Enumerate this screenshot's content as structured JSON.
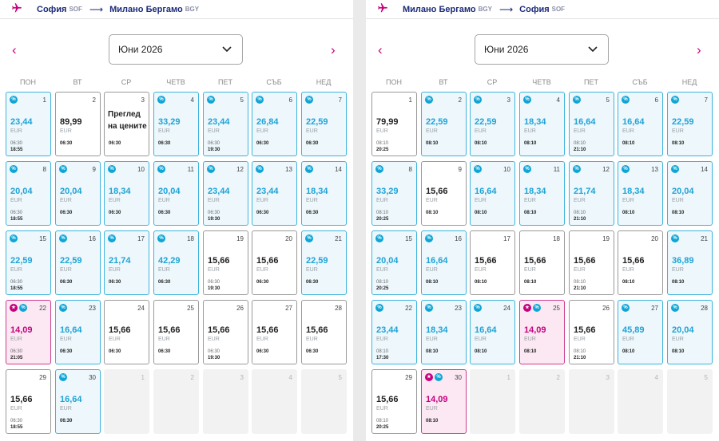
{
  "panels": [
    {
      "origin": "София",
      "origin_code": "SOF",
      "destination": "Милано Бергамо",
      "destination_code": "BGY",
      "month": "Юни 2026",
      "weekdays": [
        "ПОН",
        "ВТ",
        "СР",
        "ЧЕТВ",
        "ПЕТ",
        "СЪБ",
        "НЕД"
      ],
      "days": [
        {
          "day": "1",
          "price": "23,44",
          "currency": "EUR",
          "times": [
            "06:30",
            "18:55"
          ],
          "badges": [
            "pct"
          ],
          "style": "promo"
        },
        {
          "day": "2",
          "price": "89,99",
          "currency": "EUR",
          "times": [
            "06:30"
          ],
          "badges": [],
          "style": "plain"
        },
        {
          "day": "3",
          "note": "Преглед на цените",
          "times": [
            "06:30"
          ],
          "badges": [],
          "style": "plain"
        },
        {
          "day": "4",
          "price": "33,29",
          "currency": "EUR",
          "times": [
            "06:30"
          ],
          "badges": [
            "pct"
          ],
          "style": "promo"
        },
        {
          "day": "5",
          "price": "23,44",
          "currency": "EUR",
          "times": [
            "06:30",
            "19:30"
          ],
          "badges": [
            "pct"
          ],
          "style": "promo"
        },
        {
          "day": "6",
          "price": "26,84",
          "currency": "EUR",
          "times": [
            "06:30"
          ],
          "badges": [
            "pct"
          ],
          "style": "promo"
        },
        {
          "day": "7",
          "price": "22,59",
          "currency": "EUR",
          "times": [
            "06:30"
          ],
          "badges": [
            "pct"
          ],
          "style": "promo"
        },
        {
          "day": "8",
          "price": "20,04",
          "currency": "EUR",
          "times": [
            "06:30",
            "18:55"
          ],
          "badges": [
            "pct"
          ],
          "style": "promo"
        },
        {
          "day": "9",
          "price": "20,04",
          "currency": "EUR",
          "times": [
            "06:30"
          ],
          "badges": [
            "pct"
          ],
          "style": "promo"
        },
        {
          "day": "10",
          "price": "18,34",
          "currency": "EUR",
          "times": [
            "06:30"
          ],
          "badges": [
            "pct"
          ],
          "style": "promo"
        },
        {
          "day": "11",
          "price": "20,04",
          "currency": "EUR",
          "times": [
            "06:30"
          ],
          "badges": [
            "pct"
          ],
          "style": "promo"
        },
        {
          "day": "12",
          "price": "23,44",
          "currency": "EUR",
          "times": [
            "06:30",
            "19:30"
          ],
          "badges": [
            "pct"
          ],
          "style": "promo"
        },
        {
          "day": "13",
          "price": "23,44",
          "currency": "EUR",
          "times": [
            "06:30"
          ],
          "badges": [
            "pct"
          ],
          "style": "promo"
        },
        {
          "day": "14",
          "price": "18,34",
          "currency": "EUR",
          "times": [
            "06:30"
          ],
          "badges": [
            "pct"
          ],
          "style": "promo"
        },
        {
          "day": "15",
          "price": "22,59",
          "currency": "EUR",
          "times": [
            "06:30",
            "18:55"
          ],
          "badges": [
            "pct"
          ],
          "style": "promo"
        },
        {
          "day": "16",
          "price": "22,59",
          "currency": "EUR",
          "times": [
            "06:30"
          ],
          "badges": [
            "pct"
          ],
          "style": "promo"
        },
        {
          "day": "17",
          "price": "21,74",
          "currency": "EUR",
          "times": [
            "06:30"
          ],
          "badges": [
            "pct"
          ],
          "style": "promo"
        },
        {
          "day": "18",
          "price": "42,29",
          "currency": "EUR",
          "times": [
            "06:30"
          ],
          "badges": [
            "pct"
          ],
          "style": "promo"
        },
        {
          "day": "19",
          "price": "15,66",
          "currency": "EUR",
          "times": [
            "06:30",
            "19:30"
          ],
          "badges": [],
          "style": "plain"
        },
        {
          "day": "20",
          "price": "15,66",
          "currency": "EUR",
          "times": [
            "06:30"
          ],
          "badges": [],
          "style": "plain"
        },
        {
          "day": "21",
          "price": "22,59",
          "currency": "EUR",
          "times": [
            "06:30"
          ],
          "badges": [
            "pct"
          ],
          "style": "promo"
        },
        {
          "day": "22",
          "price": "14,09",
          "currency": "EUR",
          "times": [
            "06:30",
            "21:05"
          ],
          "badges": [
            "star",
            "pct"
          ],
          "style": "hot"
        },
        {
          "day": "23",
          "price": "16,64",
          "currency": "EUR",
          "times": [
            "06:30"
          ],
          "badges": [
            "pct"
          ],
          "style": "promo"
        },
        {
          "day": "24",
          "price": "15,66",
          "currency": "EUR",
          "times": [
            "06:30"
          ],
          "badges": [],
          "style": "plain"
        },
        {
          "day": "25",
          "price": "15,66",
          "currency": "EUR",
          "times": [
            "06:30"
          ],
          "badges": [],
          "style": "plain"
        },
        {
          "day": "26",
          "price": "15,66",
          "currency": "EUR",
          "times": [
            "06:30",
            "19:30"
          ],
          "badges": [],
          "style": "plain"
        },
        {
          "day": "27",
          "price": "15,66",
          "currency": "EUR",
          "times": [
            "06:30"
          ],
          "badges": [],
          "style": "plain"
        },
        {
          "day": "28",
          "price": "15,66",
          "currency": "EUR",
          "times": [
            "06:30"
          ],
          "badges": [],
          "style": "plain"
        },
        {
          "day": "29",
          "price": "15,66",
          "currency": "EUR",
          "times": [
            "06:30",
            "18:55"
          ],
          "badges": [],
          "style": "plain"
        },
        {
          "day": "30",
          "price": "16,64",
          "currency": "EUR",
          "times": [
            "06:30"
          ],
          "badges": [
            "pct"
          ],
          "style": "promo"
        },
        {
          "day": "1",
          "style": "empty"
        },
        {
          "day": "2",
          "style": "empty"
        },
        {
          "day": "3",
          "style": "empty"
        },
        {
          "day": "4",
          "style": "empty"
        },
        {
          "day": "5",
          "style": "empty"
        }
      ]
    },
    {
      "origin": "Милано Бергамо",
      "origin_code": "BGY",
      "destination": "София",
      "destination_code": "SOF",
      "month": "Юни 2026",
      "weekdays": [
        "ПОН",
        "ВТ",
        "СР",
        "ЧЕТВ",
        "ПЕТ",
        "СЪБ",
        "НЕД"
      ],
      "days": [
        {
          "day": "1",
          "price": "79,99",
          "currency": "EUR",
          "times": [
            "08:10",
            "20:25"
          ],
          "badges": [],
          "style": "plain"
        },
        {
          "day": "2",
          "price": "22,59",
          "currency": "EUR",
          "times": [
            "08:10"
          ],
          "badges": [
            "pct"
          ],
          "style": "promo"
        },
        {
          "day": "3",
          "price": "22,59",
          "currency": "EUR",
          "times": [
            "08:10"
          ],
          "badges": [
            "pct"
          ],
          "style": "promo"
        },
        {
          "day": "4",
          "price": "18,34",
          "currency": "EUR",
          "times": [
            "08:10"
          ],
          "badges": [
            "pct"
          ],
          "style": "promo"
        },
        {
          "day": "5",
          "price": "16,64",
          "currency": "EUR",
          "times": [
            "08:10",
            "21:10"
          ],
          "badges": [
            "pct"
          ],
          "style": "promo"
        },
        {
          "day": "6",
          "price": "16,64",
          "currency": "EUR",
          "times": [
            "08:10"
          ],
          "badges": [
            "pct"
          ],
          "style": "promo"
        },
        {
          "day": "7",
          "price": "22,59",
          "currency": "EUR",
          "times": [
            "08:10"
          ],
          "badges": [
            "pct"
          ],
          "style": "promo"
        },
        {
          "day": "8",
          "price": "33,29",
          "currency": "EUR",
          "times": [
            "08:10",
            "20:25"
          ],
          "badges": [
            "pct"
          ],
          "style": "promo"
        },
        {
          "day": "9",
          "price": "15,66",
          "currency": "EUR",
          "times": [
            "08:10"
          ],
          "badges": [],
          "style": "plain"
        },
        {
          "day": "10",
          "price": "16,64",
          "currency": "EUR",
          "times": [
            "08:10"
          ],
          "badges": [
            "pct"
          ],
          "style": "promo"
        },
        {
          "day": "11",
          "price": "18,34",
          "currency": "EUR",
          "times": [
            "08:10"
          ],
          "badges": [
            "pct"
          ],
          "style": "promo"
        },
        {
          "day": "12",
          "price": "21,74",
          "currency": "EUR",
          "times": [
            "08:10",
            "21:10"
          ],
          "badges": [
            "pct"
          ],
          "style": "promo"
        },
        {
          "day": "13",
          "price": "18,34",
          "currency": "EUR",
          "times": [
            "08:10"
          ],
          "badges": [
            "pct"
          ],
          "style": "promo"
        },
        {
          "day": "14",
          "price": "20,04",
          "currency": "EUR",
          "times": [
            "08:10"
          ],
          "badges": [
            "pct"
          ],
          "style": "promo"
        },
        {
          "day": "15",
          "price": "20,04",
          "currency": "EUR",
          "times": [
            "08:10",
            "20:25"
          ],
          "badges": [
            "pct"
          ],
          "style": "promo"
        },
        {
          "day": "16",
          "price": "16,64",
          "currency": "EUR",
          "times": [
            "08:10"
          ],
          "badges": [
            "pct"
          ],
          "style": "promo"
        },
        {
          "day": "17",
          "price": "15,66",
          "currency": "EUR",
          "times": [
            "08:10"
          ],
          "badges": [],
          "style": "plain"
        },
        {
          "day": "18",
          "price": "15,66",
          "currency": "EUR",
          "times": [
            "08:10"
          ],
          "badges": [],
          "style": "plain"
        },
        {
          "day": "19",
          "price": "15,66",
          "currency": "EUR",
          "times": [
            "08:10",
            "21:10"
          ],
          "badges": [],
          "style": "plain"
        },
        {
          "day": "20",
          "price": "15,66",
          "currency": "EUR",
          "times": [
            "08:10"
          ],
          "badges": [],
          "style": "plain"
        },
        {
          "day": "21",
          "price": "36,89",
          "currency": "EUR",
          "times": [
            "08:10"
          ],
          "badges": [
            "pct"
          ],
          "style": "promo"
        },
        {
          "day": "22",
          "price": "23,44",
          "currency": "EUR",
          "times": [
            "08:10",
            "17:30"
          ],
          "badges": [
            "pct"
          ],
          "style": "promo"
        },
        {
          "day": "23",
          "price": "18,34",
          "currency": "EUR",
          "times": [
            "08:10"
          ],
          "badges": [
            "pct"
          ],
          "style": "promo"
        },
        {
          "day": "24",
          "price": "16,64",
          "currency": "EUR",
          "times": [
            "08:10"
          ],
          "badges": [
            "pct"
          ],
          "style": "promo"
        },
        {
          "day": "25",
          "price": "14,09",
          "currency": "EUR",
          "times": [
            "08:10"
          ],
          "badges": [
            "star",
            "pct"
          ],
          "style": "hot"
        },
        {
          "day": "26",
          "price": "15,66",
          "currency": "EUR",
          "times": [
            "08:10",
            "21:10"
          ],
          "badges": [],
          "style": "plain"
        },
        {
          "day": "27",
          "price": "45,89",
          "currency": "EUR",
          "times": [
            "08:10"
          ],
          "badges": [
            "pct"
          ],
          "style": "promo"
        },
        {
          "day": "28",
          "price": "20,04",
          "currency": "EUR",
          "times": [
            "08:10"
          ],
          "badges": [
            "pct"
          ],
          "style": "promo"
        },
        {
          "day": "29",
          "price": "15,66",
          "currency": "EUR",
          "times": [
            "08:10",
            "20:25"
          ],
          "badges": [],
          "style": "plain"
        },
        {
          "day": "30",
          "price": "14,09",
          "currency": "EUR",
          "times": [
            "08:10"
          ],
          "badges": [
            "star",
            "pct"
          ],
          "style": "hot"
        },
        {
          "day": "1",
          "style": "empty"
        },
        {
          "day": "2",
          "style": "empty"
        },
        {
          "day": "3",
          "style": "empty"
        },
        {
          "day": "4",
          "style": "empty"
        },
        {
          "day": "5",
          "style": "empty"
        }
      ]
    }
  ],
  "icons": {
    "plane": "plane-icon",
    "arrow": "long-arrow-right-icon",
    "prev": "chevron-left-icon",
    "next": "chevron-right-icon",
    "dropdown": "chevron-down-icon",
    "discount": "percent-icon",
    "featured": "star-icon"
  },
  "glyphs": {
    "prev": "‹",
    "next": "›",
    "route_arrow": "⟶",
    "discount": "%",
    "featured": "★"
  },
  "colors": {
    "brand": "#c6007e",
    "route_text": "#1b2a78",
    "promo_price": "#1fa3d6",
    "promo_border": "#3db4dc",
    "promo_bg": "#edf7fc",
    "hot_bg": "#fbe8f2"
  }
}
